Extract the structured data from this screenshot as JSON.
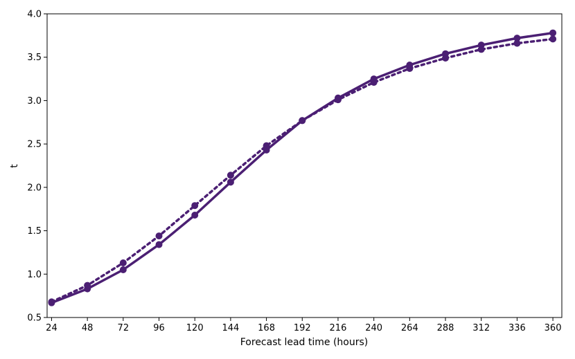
{
  "chart_data": {
    "type": "line",
    "title": "",
    "xlabel": "Forecast lead time (hours)",
    "ylabel": "t",
    "x": [
      24,
      48,
      72,
      96,
      120,
      144,
      168,
      192,
      216,
      240,
      264,
      288,
      312,
      336,
      360
    ],
    "xticks": [
      "24",
      "48",
      "72",
      "96",
      "120",
      "144",
      "168",
      "192",
      "216",
      "240",
      "264",
      "288",
      "312",
      "336",
      "360"
    ],
    "xlim": [
      21,
      366
    ],
    "ylim": [
      0.5,
      4.0
    ],
    "yticks": [
      "0.5",
      "1.0",
      "1.5",
      "2.0",
      "2.5",
      "3.0",
      "3.5",
      "4.0"
    ],
    "grid": false,
    "legend": "none",
    "series": [
      {
        "style": "solid",
        "color": "#4b1f73",
        "values": [
          0.67,
          0.83,
          1.05,
          1.34,
          1.68,
          2.06,
          2.43,
          2.77,
          3.03,
          3.25,
          3.41,
          3.54,
          3.64,
          3.72,
          3.78
        ]
      },
      {
        "style": "dotted",
        "color": "#4b1f73",
        "values": [
          0.68,
          0.87,
          1.13,
          1.44,
          1.79,
          2.14,
          2.48,
          2.77,
          3.01,
          3.21,
          3.37,
          3.49,
          3.59,
          3.66,
          3.71
        ]
      }
    ]
  }
}
